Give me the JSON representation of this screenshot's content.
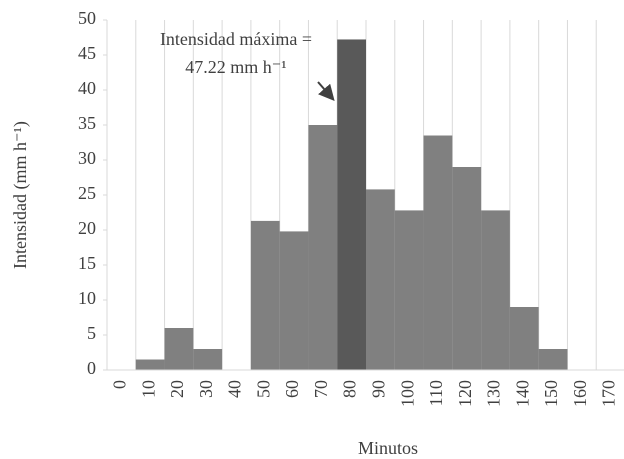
{
  "chart_data": {
    "type": "bar",
    "categories": [
      "0",
      "10",
      "20",
      "30",
      "40",
      "50",
      "60",
      "70",
      "80",
      "90",
      "100",
      "110",
      "120",
      "130",
      "140",
      "150",
      "160",
      "170"
    ],
    "values": [
      0,
      1.5,
      6,
      3,
      0,
      21.3,
      19.8,
      35,
      47.22,
      25.8,
      22.8,
      33.5,
      29,
      22.8,
      9,
      3,
      0,
      0
    ],
    "colors": [
      "#808080",
      "#808080",
      "#808080",
      "#808080",
      "#808080",
      "#808080",
      "#808080",
      "#808080",
      "#595959",
      "#808080",
      "#808080",
      "#808080",
      "#808080",
      "#808080",
      "#808080",
      "#808080",
      "#808080",
      "#808080"
    ],
    "ylim": [
      0,
      50
    ],
    "yticks": [
      0,
      5,
      10,
      15,
      20,
      25,
      30,
      35,
      40,
      45,
      50
    ],
    "x_label": "Minutos",
    "y_label": "Intensidad  (mm h⁻¹)",
    "annotation": [
      "Intensidad  máxima =",
      "47.22 mm h⁻¹"
    ],
    "grid": "vertical"
  }
}
